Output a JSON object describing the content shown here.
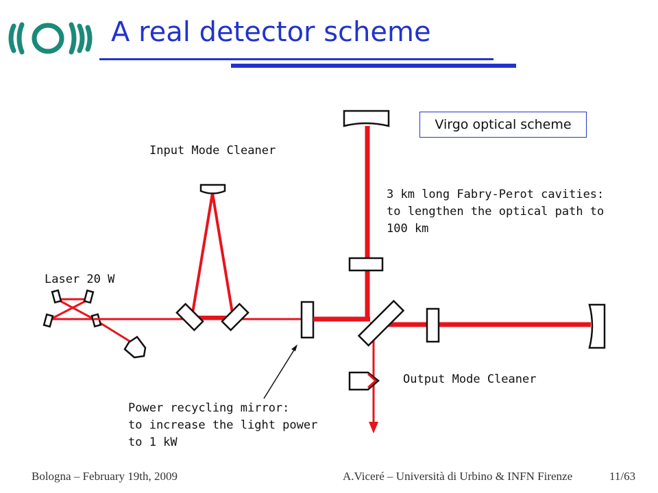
{
  "header": {
    "title": "A real detector scheme",
    "logo_icon": "virgo-logo-icon"
  },
  "diagram": {
    "scheme_box": "Virgo optical scheme",
    "labels": {
      "input_mode_cleaner": "Input Mode Cleaner",
      "fabry_perot": [
        "3 km long Fabry-Perot cavities:",
        "to lengthen the optical path to",
        "100 km"
      ],
      "laser": "Laser 20 W",
      "output_mode_cleaner": "Output Mode Cleaner",
      "power_recycling": [
        "Power recycling mirror:",
        "to increase the light power",
        "to 1 kW"
      ]
    },
    "beam_color": "#e8141c",
    "accent_color": "#2233cc"
  },
  "footer": {
    "left": "Bologna – February 19th, 2009",
    "center": "A.Viceré – Università di Urbino & INFN Firenze",
    "page": "11/63"
  }
}
